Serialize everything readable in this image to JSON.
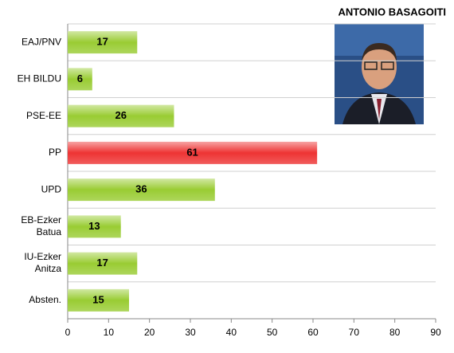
{
  "chart_data": {
    "type": "bar",
    "orientation": "horizontal",
    "title": "ANTONIO BASAGOITI",
    "categories": [
      "EAJ/PNV",
      "EH BILDU",
      "PSE-EE",
      "PP",
      "UPD",
      "EB-Ezker\nBatua",
      "IU-Ezker\nAnitza",
      "Absten."
    ],
    "values": [
      17,
      6,
      26,
      61,
      36,
      13,
      17,
      15
    ],
    "colors": [
      "#99cc33",
      "#99cc33",
      "#99cc33",
      "#ee3333",
      "#99cc33",
      "#99cc33",
      "#99cc33",
      "#99cc33"
    ],
    "xlim": [
      0,
      90
    ],
    "xticks": [
      0,
      10,
      20,
      30,
      40,
      50,
      60,
      70,
      80,
      90
    ],
    "grid": true
  }
}
